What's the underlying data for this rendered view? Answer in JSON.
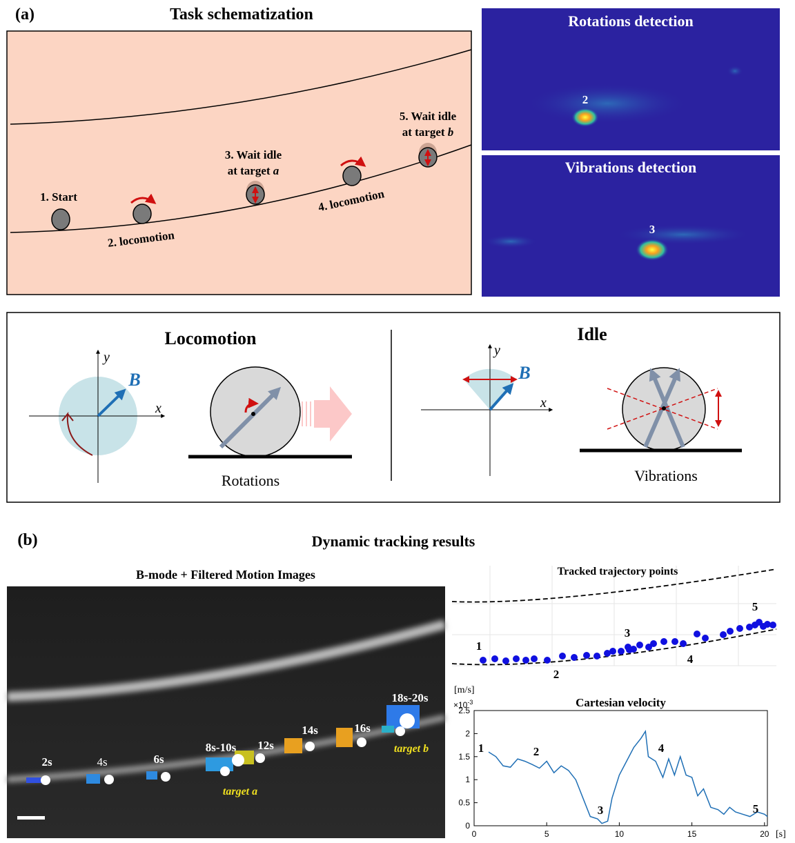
{
  "panel_a": {
    "label": "(a)",
    "title": "Task schematization",
    "steps": {
      "start": "1. Start",
      "loco1": "2. locomotion",
      "idle_a_line1": "3. Wait idle",
      "idle_a_line2": "at target",
      "idle_a_target": "a",
      "loco2": "4. locomotion",
      "idle_b_line1": "5. Wait idle",
      "idle_b_line2": "at target",
      "idle_b_target": "b"
    },
    "rotations_title": "Rotations detection",
    "rotations_marker": "2",
    "vibrations_title": "Vibrations detection",
    "vibrations_marker": "3"
  },
  "mechanism": {
    "locomotion": {
      "title": "Locomotion",
      "caption": "Rotations",
      "axis_x": "x",
      "axis_y": "y",
      "field": "B"
    },
    "idle": {
      "title": "Idle",
      "caption": "Vibrations",
      "axis_x": "x",
      "axis_y": "y",
      "field": "B"
    }
  },
  "panel_b": {
    "label": "(b)",
    "title": "Dynamic tracking results",
    "image_title": "B-mode + Filtered Motion Images",
    "time_labels": [
      "2s",
      "4s",
      "6s",
      "8s-10s",
      "12s",
      "14s",
      "16s",
      "18s-20s"
    ],
    "target_labels": [
      "target a",
      "target b"
    ],
    "trajectory": {
      "title": "Tracked trajectory points",
      "markers": [
        "1",
        "2",
        "3",
        "4",
        "5"
      ]
    }
  },
  "chart_data": {
    "type": "line",
    "title": "Cartesian velocity",
    "y_label": "[m/s]",
    "y_multiplier": "×10",
    "y_multiplier_exponent": "-3",
    "x_label": "[s]",
    "x": [
      1,
      1.5,
      2,
      2.5,
      3,
      3.5,
      4,
      4.5,
      5,
      5.5,
      6,
      6.5,
      7,
      7.5,
      8,
      8.5,
      8.8,
      9.2,
      9.5,
      10,
      10.5,
      11,
      11.5,
      11.8,
      12,
      12.5,
      13,
      13.4,
      13.8,
      14.2,
      14.6,
      15,
      15.4,
      15.8,
      16.3,
      16.8,
      17.2,
      17.6,
      18,
      18.5,
      19,
      19.5,
      20,
      20.2
    ],
    "values": [
      1.6,
      1.5,
      1.3,
      1.27,
      1.45,
      1.4,
      1.33,
      1.25,
      1.4,
      1.15,
      1.3,
      1.2,
      1.0,
      0.6,
      0.2,
      0.15,
      0.05,
      0.1,
      0.6,
      1.1,
      1.4,
      1.7,
      1.9,
      2.05,
      1.5,
      1.4,
      1.05,
      1.45,
      1.1,
      1.5,
      1.1,
      1.05,
      0.65,
      0.8,
      0.4,
      0.35,
      0.25,
      0.4,
      0.3,
      0.25,
      0.2,
      0.3,
      0.25,
      0.2
    ],
    "color": "#1f6fb5",
    "xlim": [
      0,
      20.2
    ],
    "ylim": [
      0,
      2.5
    ],
    "xticks": [
      0,
      5,
      10,
      15,
      20
    ],
    "yticks": [
      0,
      0.5,
      1,
      1.5,
      2,
      2.5
    ],
    "annotations": [
      "1",
      "2",
      "3",
      "4",
      "5"
    ]
  }
}
